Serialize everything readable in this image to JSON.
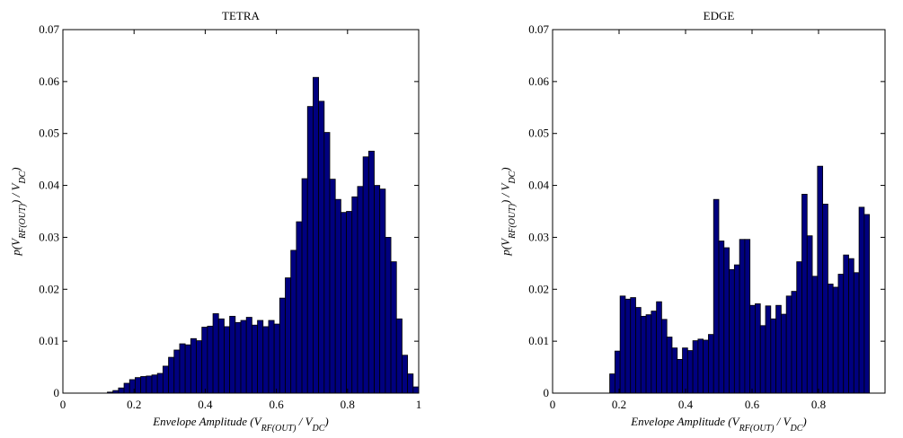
{
  "chart_data": [
    {
      "type": "histogram",
      "title": "TETRA",
      "xlabel": [
        "Envelope Amplitude (V",
        "RF(OUT)",
        " / V",
        "DC",
        ")"
      ],
      "ylabel": [
        "p(V",
        "RF(OUT)",
        ") / V",
        "DC",
        ")"
      ],
      "bins": [
        0,
        0.015625,
        0.03125,
        0.046875,
        0.0625,
        0.078125,
        0.09375,
        0.109375,
        0.125,
        0.140625,
        0.15625,
        0.171875,
        0.1875,
        0.203125,
        0.21875,
        0.234375,
        0.25,
        0.265625,
        0.28125,
        0.296875,
        0.3125,
        0.328125,
        0.34375,
        0.359375,
        0.375,
        0.390625,
        0.40625,
        0.421875,
        0.4375,
        0.453125,
        0.46875,
        0.484375,
        0.5,
        0.515625,
        0.53125,
        0.546875,
        0.5625,
        0.578125,
        0.59375,
        0.609375,
        0.625,
        0.640625,
        0.65625,
        0.671875,
        0.6875,
        0.703125,
        0.71875,
        0.734375,
        0.75,
        0.765625,
        0.78125,
        0.796875,
        0.8125,
        0.828125,
        0.84375,
        0.859375,
        0.875,
        0.890625,
        0.90625,
        0.921875,
        0.9375,
        0.953125,
        0.96875,
        0.984375,
        1
      ],
      "values": [
        0,
        0,
        0,
        0,
        0,
        0,
        0,
        0,
        0.0002,
        0.0005,
        0.001,
        0.0019,
        0.0026,
        0.003,
        0.0032,
        0.0033,
        0.0035,
        0.0038,
        0.0052,
        0.0069,
        0.0083,
        0.0095,
        0.0093,
        0.0105,
        0.0101,
        0.0127,
        0.0129,
        0.0153,
        0.0143,
        0.0128,
        0.0148,
        0.0136,
        0.014,
        0.0146,
        0.0131,
        0.014,
        0.0128,
        0.014,
        0.0133,
        0.0183,
        0.0222,
        0.0275,
        0.033,
        0.0413,
        0.0552,
        0.0608,
        0.0562,
        0.0502,
        0.0412,
        0.0373,
        0.0348,
        0.035,
        0.0378,
        0.0398,
        0.0455,
        0.0466,
        0.04,
        0.0393,
        0.03,
        0.0253,
        0.0143,
        0.0073,
        0.0037,
        0.0012
      ],
      "color": "#00007f",
      "xlim": [
        0,
        1
      ],
      "xticks": [
        0,
        0.2,
        0.4,
        0.6,
        0.8,
        1
      ],
      "ylim": [
        0,
        0.07
      ],
      "yticks": [
        0,
        0.01,
        0.02,
        0.03,
        0.04,
        0.05,
        0.06,
        0.07
      ]
    },
    {
      "type": "histogram",
      "title": "EDGE",
      "xlabel": [
        "Envelope Amplitude (V",
        "RF(OUT)",
        " / V",
        "DC",
        ")"
      ],
      "ylabel": [
        "p(V",
        "RF(OUT)",
        ") / V",
        "DC",
        ")"
      ],
      "bins": [
        0.171875,
        0.1875,
        0.203125,
        0.21875,
        0.234375,
        0.25,
        0.265625,
        0.28125,
        0.296875,
        0.3125,
        0.328125,
        0.34375,
        0.359375,
        0.375,
        0.390625,
        0.40625,
        0.421875,
        0.4375,
        0.453125,
        0.46875,
        0.484375,
        0.5,
        0.515625,
        0.53125,
        0.546875,
        0.5625,
        0.578125,
        0.59375,
        0.609375,
        0.625,
        0.640625,
        0.65625,
        0.671875,
        0.6875,
        0.703125,
        0.71875,
        0.734375,
        0.75,
        0.765625,
        0.78125,
        0.796875,
        0.8125,
        0.828125,
        0.84375,
        0.859375,
        0.875,
        0.890625,
        0.90625,
        0.921875,
        0.9375,
        0.953125
      ],
      "values": [
        0.0037,
        0.0081,
        0.0187,
        0.0181,
        0.0184,
        0.0165,
        0.0148,
        0.0151,
        0.0158,
        0.0176,
        0.0142,
        0.0108,
        0.0087,
        0.0065,
        0.0087,
        0.0082,
        0.0101,
        0.0104,
        0.0102,
        0.0113,
        0.0373,
        0.0293,
        0.028,
        0.0238,
        0.0247,
        0.0296,
        0.0296,
        0.0169,
        0.0172,
        0.013,
        0.0168,
        0.0143,
        0.0169,
        0.0152,
        0.0187,
        0.0196,
        0.0253,
        0.0383,
        0.0303,
        0.0225,
        0.0437,
        0.0364,
        0.021,
        0.0204,
        0.0229,
        0.0266,
        0.0259,
        0.0232,
        0.0358,
        0.0344
      ],
      "color": "#00007f",
      "xlim": [
        0,
        1
      ],
      "xticks": [
        0,
        0.2,
        0.4,
        0.6,
        0.8
      ],
      "ylim": [
        0,
        0.07
      ],
      "yticks": [
        0,
        0.01,
        0.02,
        0.03,
        0.04,
        0.05,
        0.06,
        0.07
      ]
    }
  ]
}
